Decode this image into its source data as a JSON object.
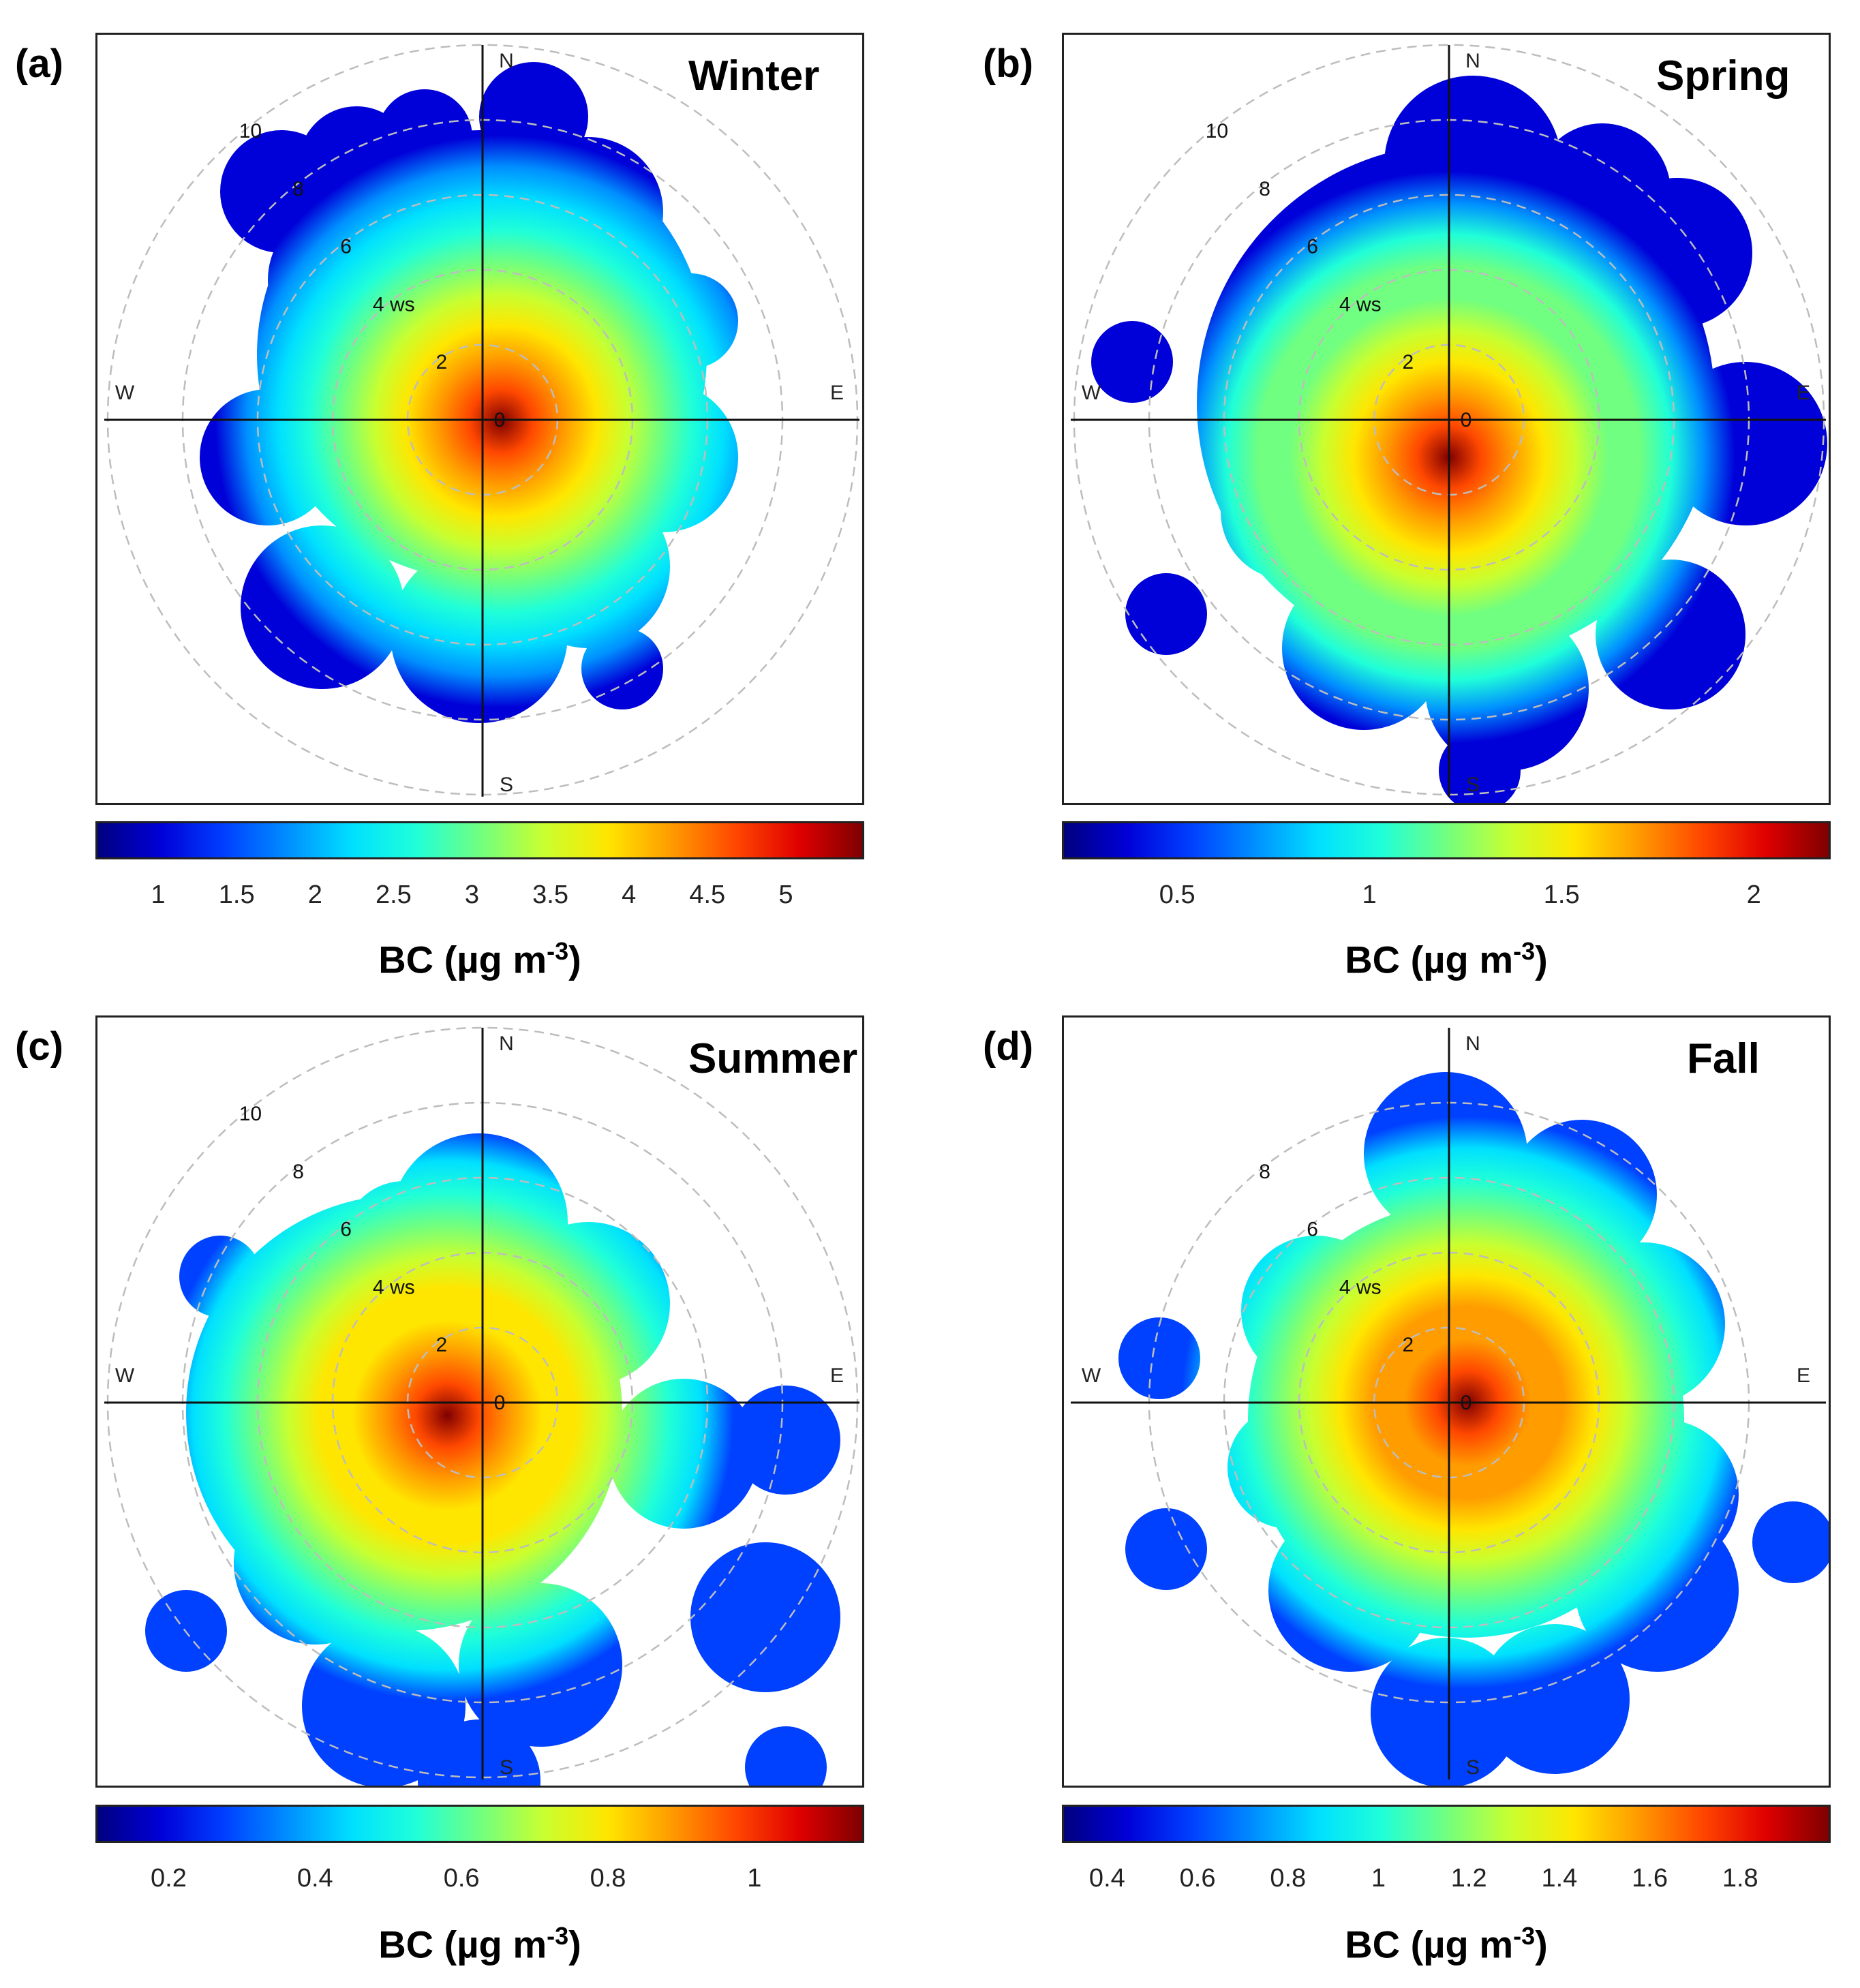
{
  "colormap": [
    "#00007f",
    "#0000d8",
    "#0040ff",
    "#0090ff",
    "#00e0ff",
    "#20ffd8",
    "#70ff80",
    "#c8ff30",
    "#ffe600",
    "#ff9c00",
    "#ff4800",
    "#e00000",
    "#7f0000"
  ],
  "chart_data": [
    {
      "type": "polar-heatmap",
      "panel_label": "(a)",
      "season": "Winter",
      "directions": {
        "N": "N",
        "E": "E",
        "S": "S",
        "W": "W"
      },
      "rings": [
        0,
        2,
        4,
        6,
        8,
        10
      ],
      "ring_texts": [
        "0",
        "2",
        "4 ws",
        "6",
        "8",
        "10"
      ],
      "colorbar": {
        "title": "BC (µg m",
        "exponent": "-3",
        "title_close": ")",
        "range": [
          0.6,
          5.5
        ],
        "ticks": [
          1,
          1.5,
          2,
          2.5,
          3,
          3.5,
          4,
          4.5,
          5
        ]
      },
      "peak": {
        "direction_deg": 95,
        "ws": 0.5,
        "value": 5.5
      },
      "background_value": 1.7
    },
    {
      "type": "polar-heatmap",
      "panel_label": "(b)",
      "season": "Spring",
      "directions": {
        "N": "N",
        "E": "E",
        "S": "S",
        "W": "W"
      },
      "rings": [
        0,
        2,
        4,
        6,
        8,
        10
      ],
      "ring_texts": [
        "0",
        "2",
        "4 ws",
        "6",
        "8",
        "10"
      ],
      "colorbar": {
        "title": "BC (µg m",
        "exponent": "-3",
        "title_close": ")",
        "range": [
          0.2,
          2.2
        ],
        "ticks": [
          0.5,
          1,
          1.5,
          2
        ]
      },
      "peak": {
        "direction_deg": 180,
        "ws": 1.0,
        "value": 2.15
      },
      "background_value": 0.75
    },
    {
      "type": "polar-heatmap",
      "panel_label": "(c)",
      "season": "Summer",
      "directions": {
        "N": "N",
        "E": "E",
        "S": "S",
        "W": "W"
      },
      "rings": [
        0,
        2,
        4,
        6,
        8,
        10
      ],
      "ring_texts": [
        "0",
        "2",
        "4 ws",
        "6",
        "8",
        "10"
      ],
      "colorbar": {
        "title": "BC (µg m",
        "exponent": "-3",
        "title_close": ")",
        "range": [
          0.1,
          1.15
        ],
        "ticks": [
          0.2,
          0.4,
          0.6,
          0.8,
          1
        ]
      },
      "peak": {
        "direction_deg": 250,
        "ws": 1.0,
        "value": 1.12
      },
      "background_value": 0.45
    },
    {
      "type": "polar-heatmap",
      "panel_label": "(d)",
      "season": "Fall",
      "directions": {
        "N": "N",
        "E": "E",
        "S": "S",
        "W": "W"
      },
      "rings": [
        0,
        2,
        4,
        6,
        8
      ],
      "ring_texts": [
        "0",
        "2",
        "4 ws",
        "6",
        "8"
      ],
      "colorbar": {
        "title": "BC (µg m",
        "exponent": "-3",
        "title_close": ")",
        "range": [
          0.3,
          2.0
        ],
        "ticks": [
          0.4,
          0.6,
          0.8,
          1,
          1.2,
          1.4,
          1.6,
          1.8
        ]
      },
      "peak": {
        "direction_deg": 90,
        "ws": 0.5,
        "value": 1.98
      },
      "background_value": 0.85
    }
  ]
}
